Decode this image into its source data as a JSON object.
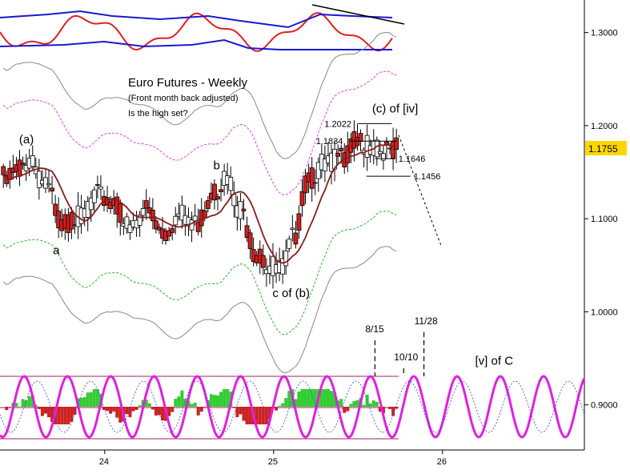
{
  "chart_data": {
    "type": "candlestick",
    "title": "Euro Futures - Weekly",
    "subtitle_lines": [
      "(Front month back adjusted)",
      "Is the high set?"
    ],
    "last_price": "1.1755",
    "colors": {
      "up_candle": "#ffffff",
      "down_candle": "#d21f1f",
      "moving_average": "#8b1a1a",
      "upper_band_inner": "#e040e0",
      "lower_band_inner": "#22bb22",
      "outer_band": "#888888",
      "top_panel_red": "#e02020",
      "top_panel_blue": "#1a1ad0",
      "cycle_main": "#e020e0",
      "last_price_box": "#ffd700"
    },
    "y_axis": {
      "range": [
        0.83,
        1.335
      ],
      "ticks": [
        "1.3000",
        "1.2000",
        "1.1000",
        "1.0000",
        "0.9000"
      ]
    },
    "x_axis": {
      "range": [
        2023.38,
        2026.84
      ],
      "ticks": [
        "24",
        "25",
        "26"
      ]
    },
    "price_points": [
      [
        2023.4,
        1.145
      ],
      [
        2023.55,
        1.16
      ],
      [
        2023.65,
        1.135
      ],
      [
        2023.75,
        1.095
      ],
      [
        2023.85,
        1.102
      ],
      [
        2023.95,
        1.125
      ],
      [
        2024.05,
        1.115
      ],
      [
        2024.15,
        1.09
      ],
      [
        2024.25,
        1.11
      ],
      [
        2024.35,
        1.085
      ],
      [
        2024.45,
        1.105
      ],
      [
        2024.55,
        1.095
      ],
      [
        2024.65,
        1.13
      ],
      [
        2024.72,
        1.145
      ],
      [
        2024.8,
        1.11
      ],
      [
        2024.9,
        1.06
      ],
      [
        2024.98,
        1.05
      ],
      [
        2025.05,
        1.048
      ],
      [
        2025.12,
        1.08
      ],
      [
        2025.2,
        1.14
      ],
      [
        2025.3,
        1.16
      ],
      [
        2025.4,
        1.165
      ],
      [
        2025.5,
        1.185
      ],
      [
        2025.58,
        1.175
      ],
      [
        2025.65,
        1.17
      ],
      [
        2025.74,
        1.1755
      ]
    ],
    "fib_levels": [
      {
        "label": "1.2022",
        "value": 1.2022,
        "x_range": [
          2025.5,
          2025.7
        ]
      },
      {
        "label": "1.1834",
        "value": 1.1834,
        "x_range": [
          2025.45,
          2025.73
        ]
      },
      {
        "label": "1.1646",
        "value": 1.1646,
        "x_range": [
          2025.6,
          2025.72
        ]
      },
      {
        "label": "1.1456",
        "value": 1.1456,
        "x_range": [
          2025.55,
          2025.81
        ]
      }
    ],
    "wave_labels": [
      {
        "text": "(a)",
        "x": 2023.55,
        "y": 1.181
      },
      {
        "text": "b",
        "x": 2024.7,
        "y": 1.153
      },
      {
        "text": "a",
        "x": 2023.75,
        "y": 1.062
      },
      {
        "text": "c of (b)",
        "x": 2025.05,
        "y": 1.016
      },
      {
        "text": "(c) of [iv]",
        "x": 2025.64,
        "y": 1.214
      },
      {
        "text": "[v] of C",
        "x": 2026.25,
        "y": 0.943
      }
    ],
    "cycle_dates": [
      {
        "label": "8/15",
        "x": 2025.6
      },
      {
        "label": "10/10",
        "x": 2025.77
      },
      {
        "label": "11/28",
        "x": 2025.89
      }
    ]
  }
}
